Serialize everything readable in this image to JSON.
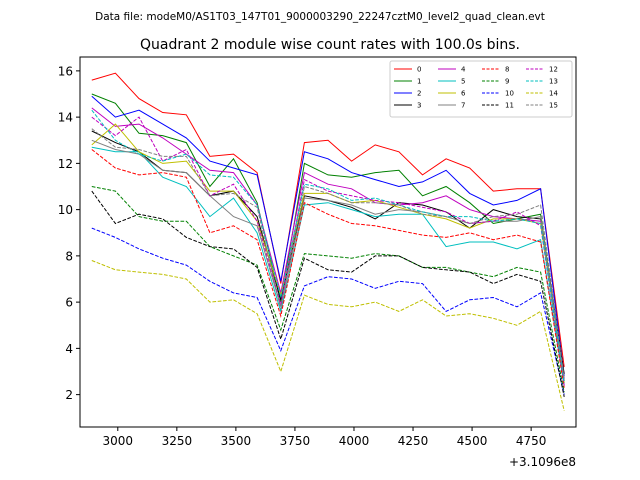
{
  "chart_data": {
    "type": "line",
    "suptitle": "Data file: modeM0/AS1T03_147T01_9000003290_22247cztM0_level2_quad_clean.evt",
    "title": "Quadrant 2 module wise count rates with 100.0s bins.",
    "xlabel": "",
    "ylabel": "",
    "x_offset_label": "+3.1096e8",
    "xlim": [
      2840,
      4940
    ],
    "ylim": [
      0.6,
      16.6
    ],
    "xticks": [
      3000,
      3250,
      3500,
      3750,
      4000,
      4250,
      4500,
      4750
    ],
    "yticks": [
      2,
      4,
      6,
      8,
      10,
      12,
      14,
      16
    ],
    "legend_position": "top-right",
    "x": [
      2890,
      2990,
      3090,
      3190,
      3290,
      3390,
      3490,
      3590,
      3690,
      3790,
      3890,
      3990,
      4090,
      4190,
      4290,
      4390,
      4490,
      4590,
      4690,
      4790,
      4890
    ],
    "series": [
      {
        "name": "0",
        "color": "#ff0000",
        "dash": "solid",
        "values": [
          15.6,
          15.9,
          14.8,
          14.2,
          14.1,
          12.3,
          12.4,
          11.6,
          6.8,
          12.9,
          13.0,
          12.1,
          12.8,
          12.5,
          11.5,
          12.2,
          11.8,
          10.8,
          10.9,
          10.9,
          3.2
        ]
      },
      {
        "name": "1",
        "color": "#008000",
        "dash": "solid",
        "values": [
          15.0,
          14.6,
          13.3,
          13.2,
          12.9,
          11.0,
          12.2,
          10.3,
          6.0,
          12.0,
          11.5,
          11.4,
          11.6,
          11.7,
          10.6,
          11.0,
          10.3,
          9.4,
          9.6,
          9.8,
          2.6
        ]
      },
      {
        "name": "2",
        "color": "#0000ff",
        "dash": "solid",
        "values": [
          14.9,
          14.0,
          14.3,
          13.7,
          13.1,
          12.1,
          11.8,
          11.5,
          6.9,
          12.5,
          12.2,
          11.6,
          11.3,
          11.0,
          11.2,
          11.7,
          10.7,
          10.2,
          10.4,
          10.9,
          2.8
        ]
      },
      {
        "name": "3",
        "color": "#000000",
        "dash": "solid",
        "values": [
          13.4,
          12.9,
          12.5,
          11.7,
          11.6,
          10.6,
          10.8,
          9.7,
          6.1,
          10.6,
          10.4,
          10.1,
          9.6,
          10.3,
          10.2,
          9.9,
          9.2,
          10.0,
          9.7,
          9.6,
          2.9
        ]
      },
      {
        "name": "4",
        "color": "#bf00bf",
        "dash": "solid",
        "values": [
          14.4,
          13.6,
          13.7,
          13.1,
          12.4,
          11.7,
          11.6,
          10.2,
          6.4,
          11.6,
          11.1,
          10.9,
          10.3,
          10.2,
          10.3,
          10.6,
          10.0,
          9.7,
          9.6,
          9.5,
          2.7
        ]
      },
      {
        "name": "5",
        "color": "#00bfbf",
        "dash": "solid",
        "values": [
          12.7,
          12.5,
          12.5,
          11.4,
          11.0,
          9.7,
          10.5,
          9.0,
          5.6,
          10.2,
          10.3,
          10.0,
          9.7,
          9.8,
          9.8,
          8.4,
          8.6,
          8.6,
          8.3,
          8.7,
          2.4
        ]
      },
      {
        "name": "6",
        "color": "#bfbf00",
        "dash": "solid",
        "values": [
          12.8,
          13.7,
          12.5,
          12.0,
          12.1,
          10.8,
          10.8,
          9.5,
          6.3,
          10.7,
          10.7,
          10.3,
          10.4,
          10.1,
          9.8,
          9.6,
          9.2,
          9.6,
          9.6,
          9.4,
          2.5
        ]
      },
      {
        "name": "7",
        "color": "#808080",
        "dash": "solid",
        "values": [
          13.0,
          12.6,
          12.4,
          11.7,
          11.6,
          10.6,
          9.7,
          9.3,
          5.8,
          10.5,
          10.4,
          10.2,
          9.8,
          10.0,
          9.9,
          9.7,
          9.4,
          9.5,
          9.5,
          9.7,
          2.6
        ]
      },
      {
        "name": "8",
        "color": "#ff0000",
        "dash": "dashed",
        "values": [
          12.6,
          11.8,
          11.5,
          11.6,
          11.4,
          9.0,
          9.3,
          8.7,
          5.4,
          10.3,
          9.8,
          9.4,
          9.3,
          9.1,
          8.9,
          8.8,
          9.0,
          8.7,
          8.9,
          8.6,
          2.3
        ]
      },
      {
        "name": "9",
        "color": "#008000",
        "dash": "dashed",
        "values": [
          11.0,
          10.8,
          9.7,
          9.5,
          9.5,
          8.4,
          8.0,
          7.6,
          4.8,
          8.1,
          8.0,
          7.9,
          8.1,
          8.0,
          7.5,
          7.5,
          7.3,
          7.1,
          7.5,
          7.3,
          2.1
        ]
      },
      {
        "name": "10",
        "color": "#0000ff",
        "dash": "dashed",
        "values": [
          9.2,
          8.8,
          8.3,
          7.9,
          7.6,
          6.9,
          6.4,
          6.2,
          3.9,
          6.7,
          7.1,
          7.0,
          6.6,
          6.9,
          6.8,
          5.6,
          6.1,
          6.2,
          5.8,
          6.4,
          2.0
        ]
      },
      {
        "name": "11",
        "color": "#000000",
        "dash": "dashed",
        "values": [
          10.8,
          9.4,
          9.8,
          9.6,
          8.8,
          8.4,
          8.3,
          7.5,
          4.4,
          7.9,
          7.4,
          7.3,
          8.0,
          8.0,
          7.5,
          7.4,
          7.3,
          6.8,
          7.2,
          6.9,
          1.9
        ]
      },
      {
        "name": "12",
        "color": "#bf00bf",
        "dash": "dashed",
        "values": [
          14.0,
          13.2,
          14.0,
          12.1,
          12.6,
          10.6,
          11.1,
          9.5,
          5.9,
          11.3,
          10.8,
          10.6,
          10.4,
          10.3,
          10.1,
          9.9,
          9.4,
          9.5,
          9.9,
          9.3,
          2.4
        ]
      },
      {
        "name": "13",
        "color": "#00bfbf",
        "dash": "dashed",
        "values": [
          14.3,
          13.0,
          12.4,
          12.1,
          12.4,
          11.5,
          11.4,
          10.2,
          6.2,
          11.1,
          10.9,
          10.4,
          10.5,
          10.2,
          9.9,
          9.7,
          9.7,
          9.5,
          9.6,
          9.4,
          2.5
        ]
      },
      {
        "name": "14",
        "color": "#bfbf00",
        "dash": "dashed",
        "values": [
          7.8,
          7.4,
          7.3,
          7.2,
          7.0,
          6.0,
          6.1,
          5.5,
          3.0,
          6.3,
          5.9,
          5.8,
          6.0,
          5.6,
          6.1,
          5.4,
          5.5,
          5.3,
          5.0,
          5.6,
          1.3
        ]
      },
      {
        "name": "15",
        "color": "#808080",
        "dash": "dashed",
        "values": [
          13.5,
          12.7,
          12.6,
          12.3,
          12.3,
          10.6,
          10.7,
          10.1,
          5.7,
          11.0,
          10.7,
          10.3,
          10.3,
          10.2,
          9.8,
          9.7,
          9.4,
          9.7,
          9.8,
          10.2,
          2.7
        ]
      }
    ]
  }
}
